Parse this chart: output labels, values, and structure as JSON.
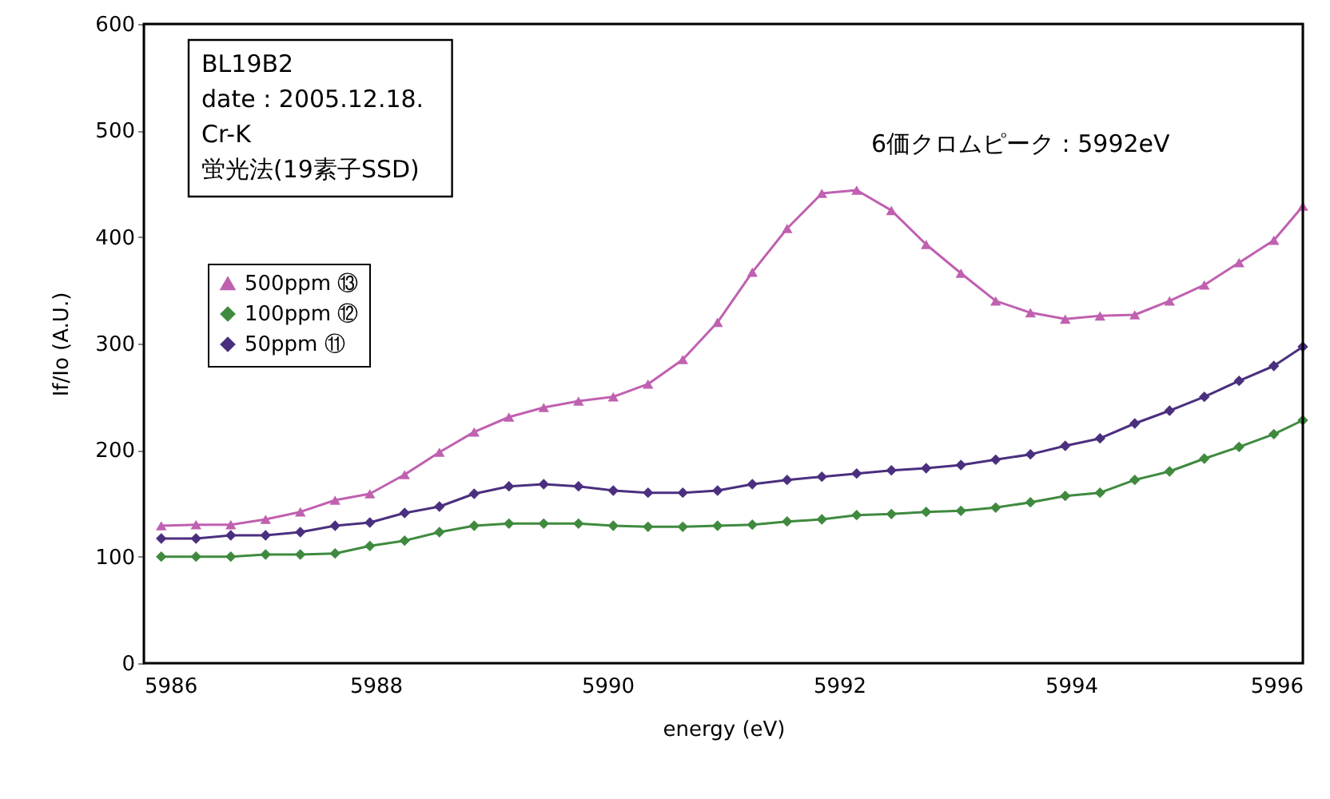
{
  "chart_data": {
    "type": "line",
    "xlabel": "energy (eV)",
    "ylabel": "If/Io (A.U.)",
    "x": [
      5986.15,
      5986.45,
      5986.75,
      5987.05,
      5987.35,
      5987.65,
      5987.95,
      5988.25,
      5988.55,
      5988.85,
      5989.15,
      5989.45,
      5989.75,
      5990.05,
      5990.35,
      5990.65,
      5990.95,
      5991.25,
      5991.55,
      5991.85,
      5992.15,
      5992.45,
      5992.75,
      5993.05,
      5993.35,
      5993.65,
      5993.95,
      5994.25,
      5994.55,
      5994.85,
      5995.15,
      5995.45,
      5995.75,
      5996.0
    ],
    "series": [
      {
        "name": "500ppm ⑬",
        "color": "#c060b0",
        "marker": "triangle",
        "values": [
          129,
          130,
          130,
          135,
          142,
          153,
          159,
          177,
          198,
          217,
          231,
          240,
          246,
          250,
          262,
          285,
          320,
          367,
          408,
          441,
          444,
          425,
          393,
          366,
          340,
          329,
          323,
          326,
          327,
          340,
          355,
          376,
          397,
          429
        ]
      },
      {
        "name": "100ppm ⑫",
        "color": "#3f8a3f",
        "marker": "diamond",
        "values": [
          100,
          100,
          100,
          102,
          102,
          103,
          110,
          115,
          123,
          129,
          131,
          131,
          131,
          129,
          128,
          128,
          129,
          130,
          133,
          135,
          139,
          140,
          142,
          143,
          146,
          151,
          157,
          160,
          172,
          180,
          192,
          203,
          215,
          228
        ]
      },
      {
        "name": "50ppm  ⑪",
        "color": "#4b2f7f",
        "marker": "diamond",
        "values": [
          117,
          117,
          120,
          120,
          123,
          129,
          132,
          141,
          147,
          159,
          166,
          168,
          166,
          162,
          160,
          160,
          162,
          168,
          172,
          175,
          178,
          181,
          183,
          186,
          191,
          196,
          204,
          211,
          225,
          237,
          250,
          265,
          279,
          297
        ]
      }
    ],
    "xlim": [
      5986,
      5996
    ],
    "xticks": [
      5986,
      5988,
      5990,
      5992,
      5994,
      5996
    ],
    "ylim": [
      0,
      600
    ],
    "yticks": [
      0,
      100,
      200,
      300,
      400,
      500,
      600
    ],
    "grid": false,
    "legend": "left",
    "annotations": [
      "BL19B2",
      "date : 2005.12.18.",
      "Cr-K",
      "蛍光法(19素子SSD)",
      "6価クロムピーク : 5992eV"
    ]
  }
}
